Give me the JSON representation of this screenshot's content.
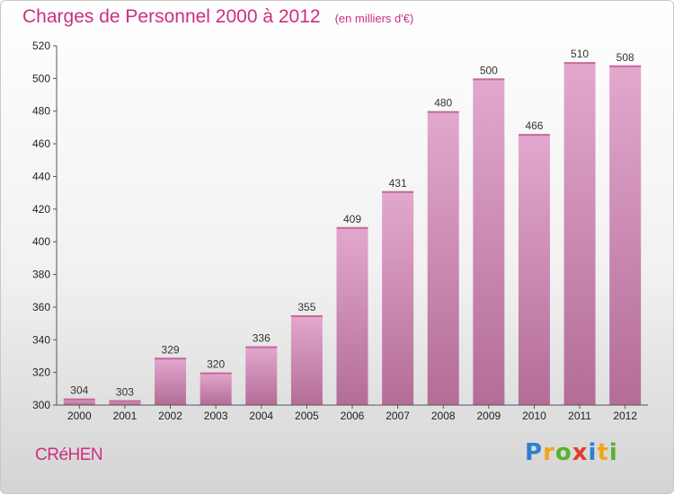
{
  "header": {
    "title": "Charges de Personnel 2000 à 2012",
    "subtitle": "(en milliers d'€)"
  },
  "footer": {
    "commune": "CRéHEN",
    "logo_letters": [
      "P",
      "r",
      "o",
      "x",
      "i",
      "t",
      "i"
    ],
    "logo_colors": [
      "#2f7fd1",
      "#f3a51a",
      "#58b130",
      "#e23b2f"
    ]
  },
  "colors": {
    "bar_top": "#e3a8ce",
    "bar_bottom": "#b36d97",
    "title": "#cc2f7d"
  },
  "chart_data": {
    "type": "bar",
    "title": "Charges de Personnel 2000 à 2012",
    "subtitle": "(en milliers d'€)",
    "categories": [
      "2000",
      "2001",
      "2002",
      "2003",
      "2004",
      "2005",
      "2006",
      "2007",
      "2008",
      "2009",
      "2010",
      "2011",
      "2012"
    ],
    "values": [
      304,
      303,
      329,
      320,
      336,
      355,
      409,
      431,
      480,
      500,
      466,
      510,
      508
    ],
    "ylim": [
      300,
      520
    ],
    "yticks": [
      300,
      320,
      340,
      360,
      380,
      400,
      420,
      440,
      460,
      480,
      500,
      520
    ],
    "grid": false,
    "legend": "none"
  }
}
